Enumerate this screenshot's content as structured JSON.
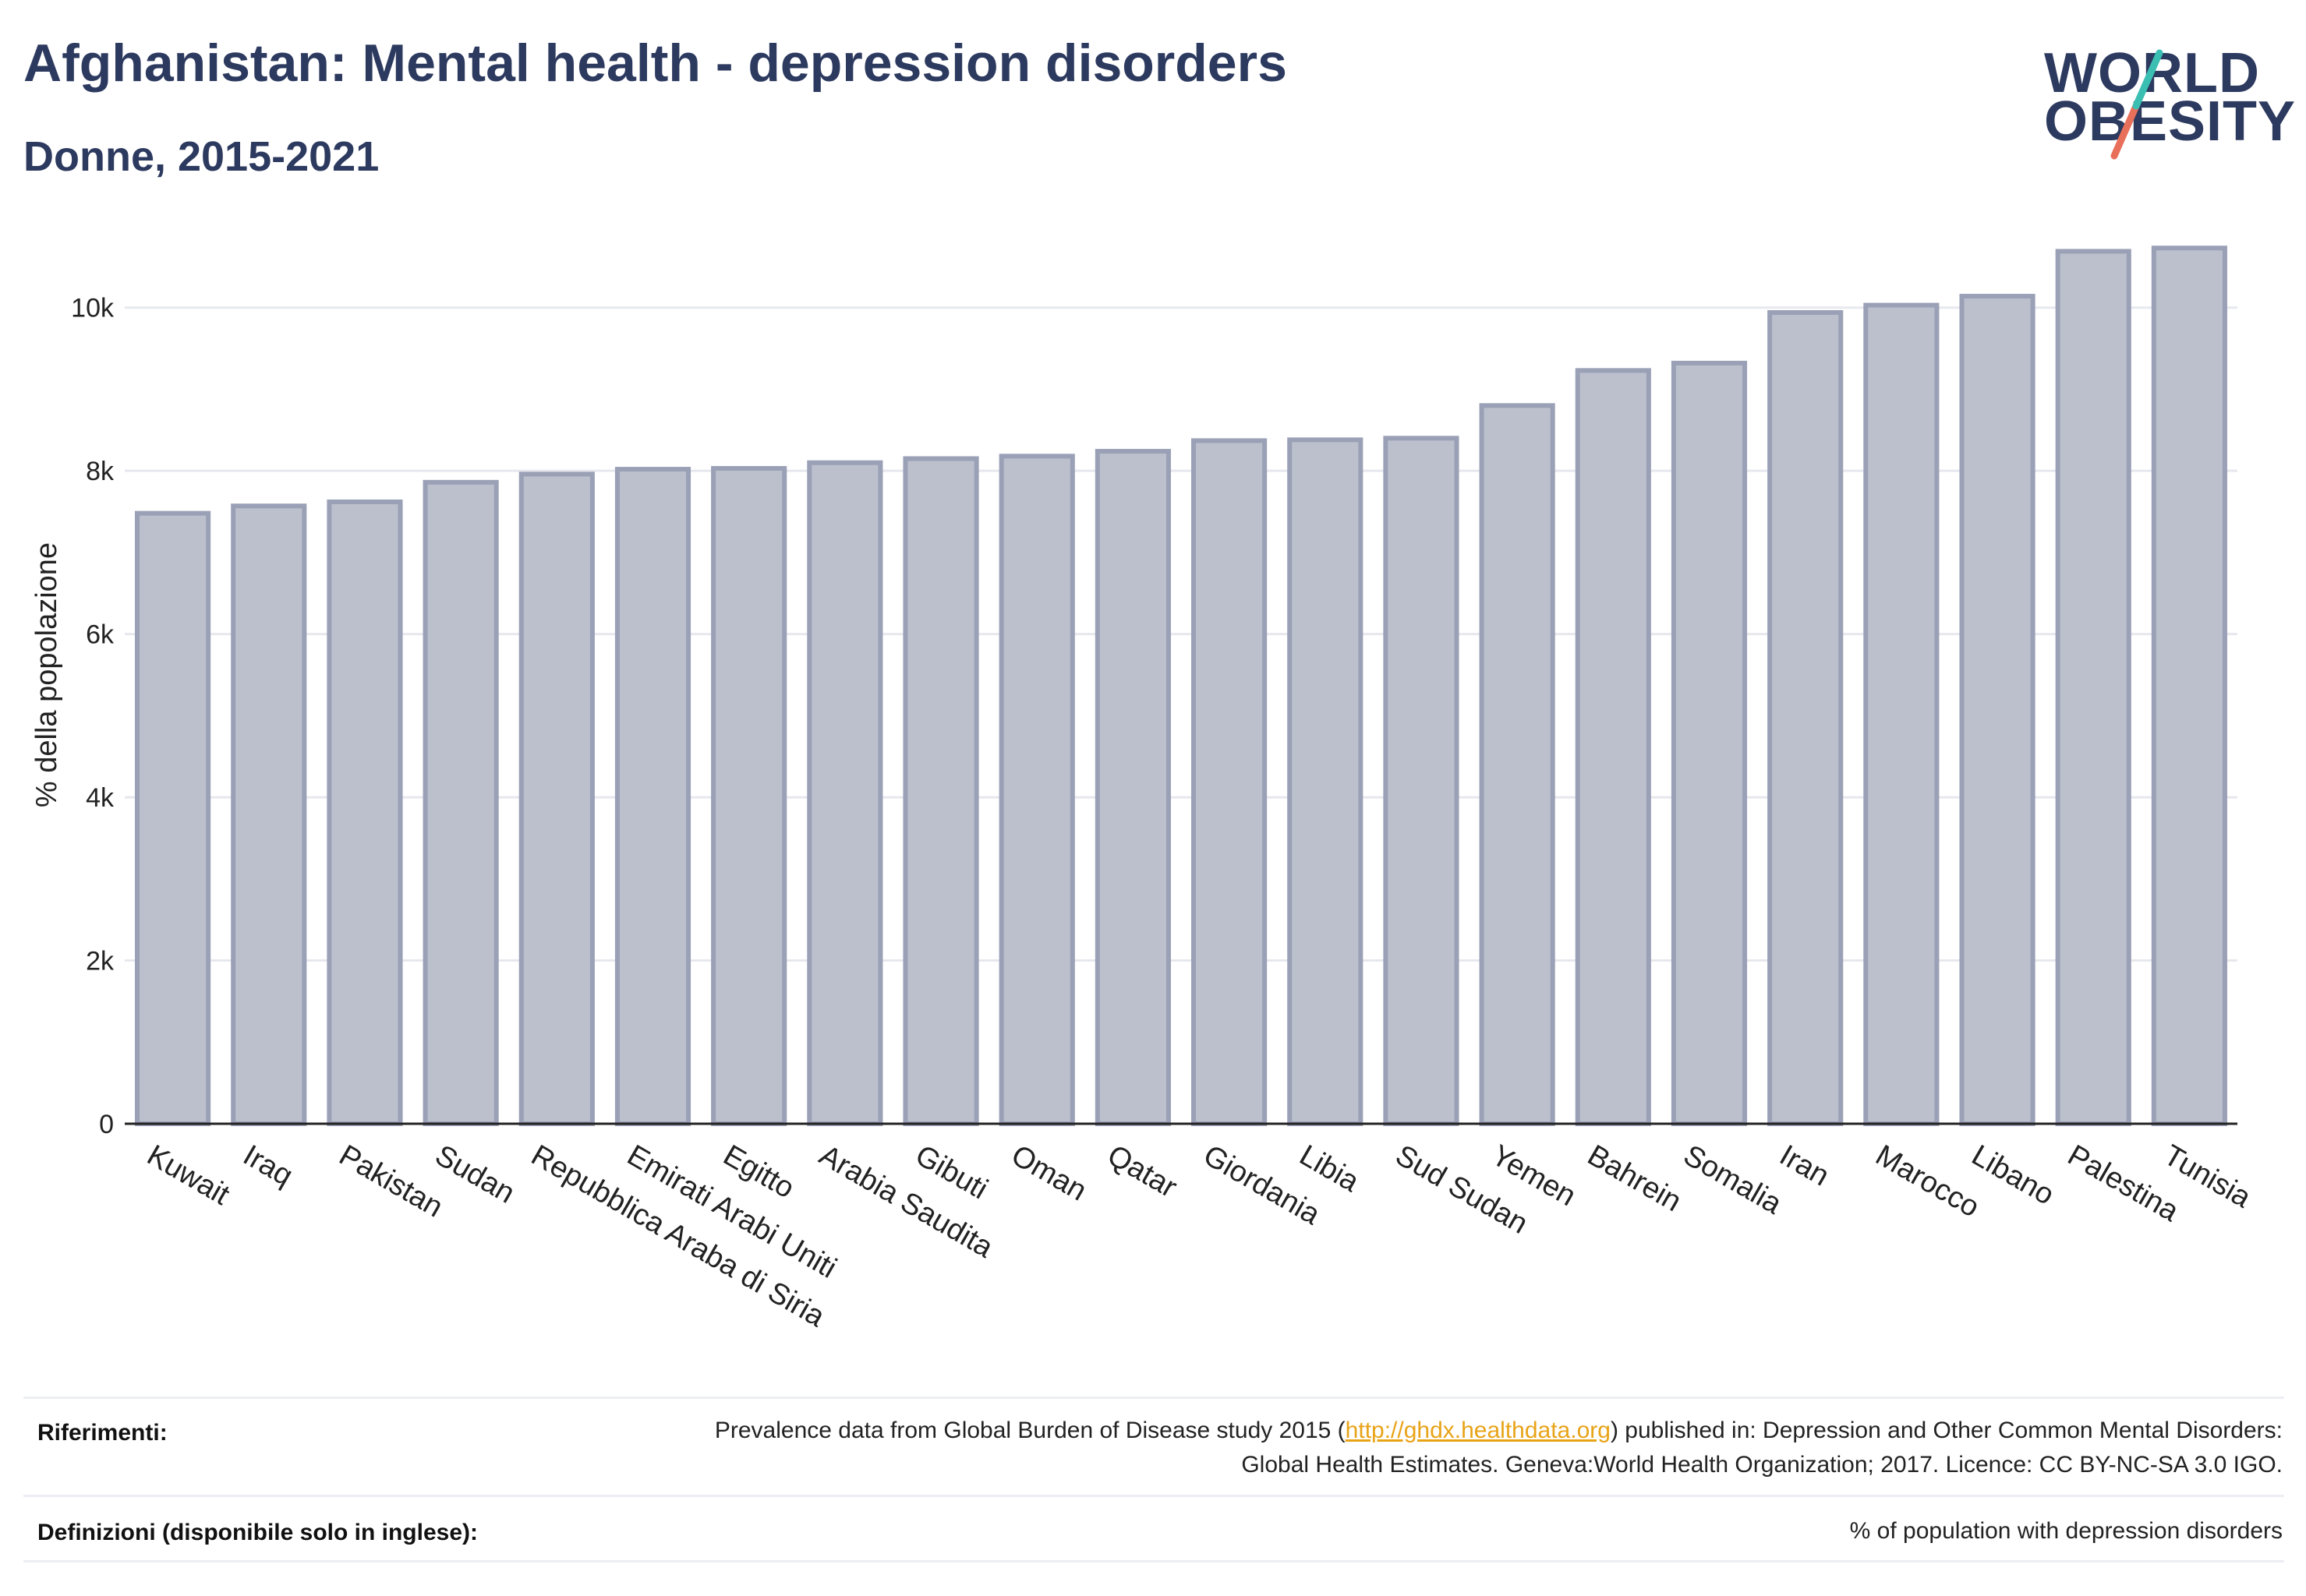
{
  "header": {
    "title": "Afghanistan: Mental health - depression disorders",
    "subtitle": "Donne, 2015-2021"
  },
  "logo": {
    "line1": "WORLD",
    "line2": "OBESITY",
    "slash_colors": [
      "#3bbfb3",
      "#e8705a"
    ]
  },
  "chart_data": {
    "type": "bar",
    "title": "Afghanistan: Mental health - depression disorders",
    "subtitle": "Donne, 2015-2021",
    "xlabel": "",
    "ylabel": "% della popolazione",
    "ylim": [
      0,
      11000
    ],
    "yticks": [
      {
        "value": 0,
        "label": "0"
      },
      {
        "value": 2000,
        "label": "2k"
      },
      {
        "value": 4000,
        "label": "4k"
      },
      {
        "value": 6000,
        "label": "6k"
      },
      {
        "value": 8000,
        "label": "8k"
      },
      {
        "value": 10000,
        "label": "10k"
      }
    ],
    "grid": true,
    "bar_fill": "#bcc0cd",
    "bar_stroke": "#9aa0b6",
    "categories": [
      "Kuwait",
      "Iraq",
      "Pakistan",
      "Sudan",
      "Repubblica Araba di Siria",
      "Emirati Arabi Uniti",
      "Egitto",
      "Arabia Saudita",
      "Gibuti",
      "Oman",
      "Qatar",
      "Giordania",
      "Libia",
      "Sud Sudan",
      "Yemen",
      "Bahrein",
      "Somalia",
      "Iran",
      "Marocco",
      "Libano",
      "Palestina",
      "Tunisia"
    ],
    "values": [
      7480,
      7570,
      7620,
      7860,
      7960,
      8020,
      8030,
      8100,
      8150,
      8180,
      8240,
      8370,
      8380,
      8400,
      8800,
      9230,
      9320,
      9940,
      10030,
      10140,
      10690,
      10730
    ]
  },
  "footer": {
    "references_label": "Riferimenti:",
    "references_text_before": "Prevalence data from Global Burden of Disease study 2015 (",
    "references_link": "http://ghdx.healthdata.org",
    "references_text_after": ") published in: Depression and Other Common Mental Disorders: Global Health Estimates. Geneva:World Health Organization; 2017. Licence: CC BY-NC-SA 3.0 IGO.",
    "definitions_label": "Definizioni (disponibile solo in inglese):",
    "definitions_text": "% of population with depression disorders"
  }
}
